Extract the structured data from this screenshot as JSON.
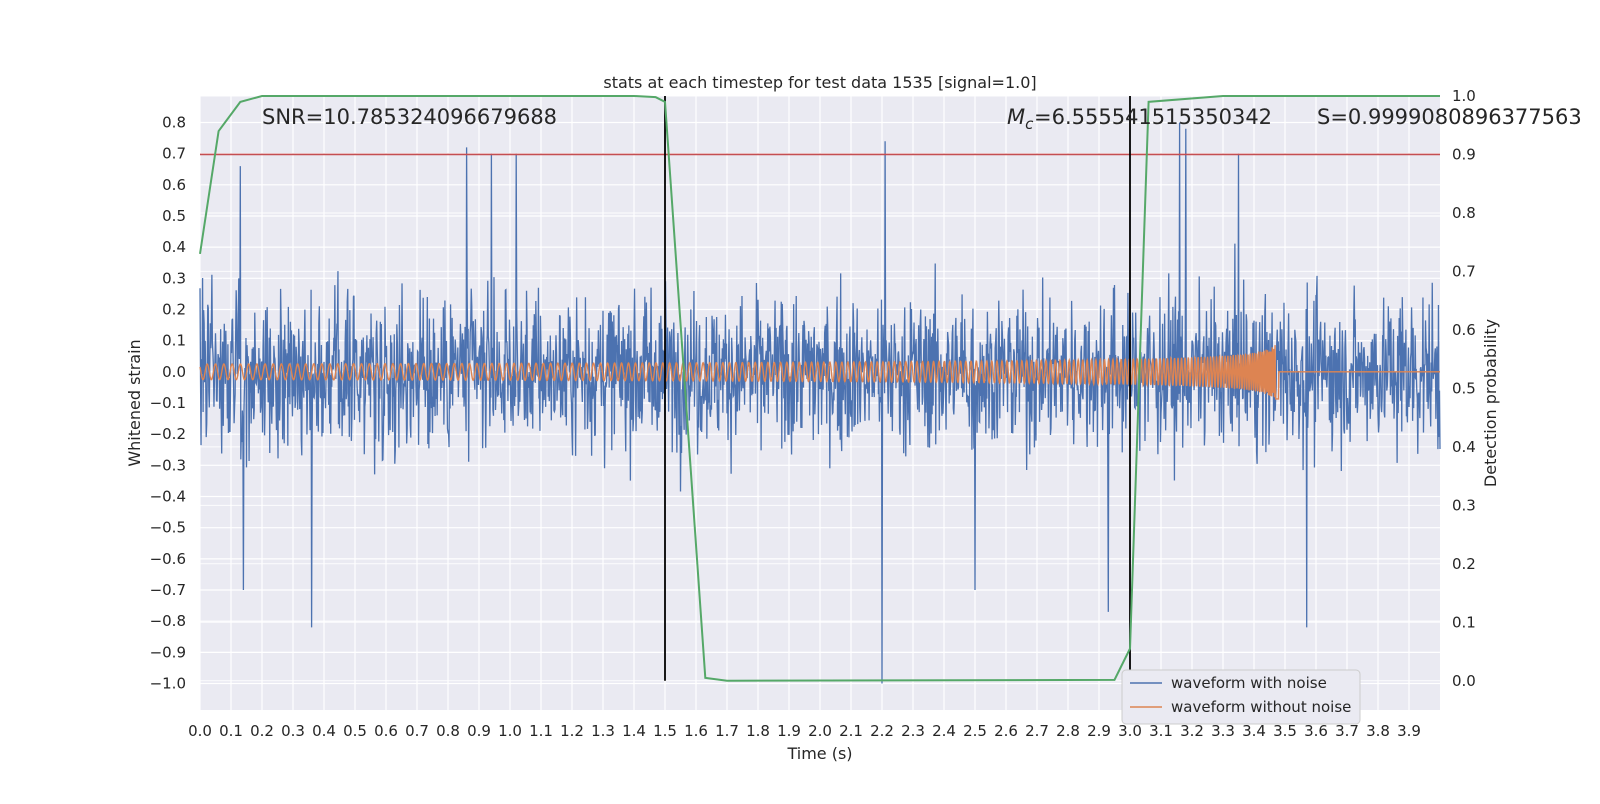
{
  "chart_data": {
    "type": "line",
    "title": "stats at each timestep for test data 1535 [signal=1.0]",
    "xlabel": "Time (s)",
    "ylabel_left": "Whitened strain",
    "ylabel_right": "Detection probability",
    "xlim": [
      0.0,
      4.0
    ],
    "ylim_left": [
      -1.085,
      0.885
    ],
    "ylim_right": [
      -0.05,
      1.0
    ],
    "x_ticks": [
      0.0,
      0.1,
      0.2,
      0.3,
      0.4,
      0.5,
      0.6,
      0.7,
      0.8,
      0.9,
      1.0,
      1.1,
      1.2,
      1.3,
      1.4,
      1.5,
      1.6,
      1.7,
      1.8,
      1.9,
      2.0,
      2.1,
      2.2,
      2.3,
      2.4,
      2.5,
      2.6,
      2.7,
      2.8,
      2.9,
      3.0,
      3.1,
      3.2,
      3.3,
      3.4,
      3.5,
      3.6,
      3.7,
      3.8,
      3.9
    ],
    "x_tick_labels": [
      "0.0",
      "0.1",
      "0.2",
      "0.3",
      "0.4",
      "0.5",
      "0.6",
      "0.7",
      "0.8",
      "0.9",
      "1.0",
      "1.1",
      "1.2",
      "1.3",
      "1.4",
      "1.5",
      "1.6",
      "1.7",
      "1.8",
      "1.9",
      "2.0",
      "2.1",
      "2.2",
      "2.3",
      "2.4",
      "2.5",
      "2.6",
      "2.7",
      "2.8",
      "2.9",
      "3.0",
      "3.1",
      "3.2",
      "3.3",
      "3.4",
      "3.5",
      "3.6",
      "3.7",
      "3.8",
      "3.9"
    ],
    "y_left_ticks": [
      0.8,
      0.7,
      0.6,
      0.5,
      0.4,
      0.3,
      0.2,
      0.1,
      0.0,
      -0.1,
      -0.2,
      -0.3,
      -0.4,
      -0.5,
      -0.6,
      -0.7,
      -0.8,
      -0.9,
      -1.0
    ],
    "y_left_tick_labels": [
      "0.8",
      "0.7",
      "0.6",
      "0.5",
      "0.4",
      "0.3",
      "0.2",
      "0.1",
      "0.0",
      "−0.1",
      "−0.2",
      "−0.3",
      "−0.4",
      "−0.5",
      "−0.6",
      "−0.7",
      "−0.8",
      "−0.9",
      "−1.0"
    ],
    "y_right_ticks": [
      1.0,
      0.9,
      0.8,
      0.7,
      0.6,
      0.5,
      0.4,
      0.3,
      0.2,
      0.1,
      0.0
    ],
    "y_right_tick_labels": [
      "1.0",
      "0.9",
      "0.8",
      "0.7",
      "0.6",
      "0.5",
      "0.4",
      "0.3",
      "0.2",
      "0.1",
      "0.0"
    ],
    "grid": true,
    "legend_location": "lower-right",
    "annotations": {
      "snr": "SNR=10.785324096679688",
      "mc": "=6.555541515350342",
      "s": "S=0.9999080896377563"
    },
    "threshold_probability": 0.9,
    "vertical_markers": [
      1.5,
      3.0
    ],
    "series": [
      {
        "name": "waveform with noise",
        "color": "#4c72b0",
        "axis": "left",
        "description_type": "noisy strain",
        "noise_envelope": [
          0.45,
          -0.45
        ],
        "peak_values": [
          0.66,
          0.7,
          0.7,
          0.72,
          0.8,
          0.81,
          0.78,
          -0.82,
          -0.7,
          -1.0,
          -0.7,
          -0.77,
          -0.82
        ]
      },
      {
        "name": "waveform without noise",
        "color": "#dd8452",
        "axis": "left",
        "chirp_start_amplitude": 0.025,
        "chirp_peak_amplitude": 0.27,
        "chirp_peak_time": 3.47,
        "chirp_end_time": 3.48
      },
      {
        "name": "Detection probability",
        "color": "#55a868",
        "axis": "right",
        "x": [
          0.0,
          0.06,
          0.13,
          0.2,
          1.4,
          1.47,
          1.5,
          1.63,
          1.7,
          2.95,
          3.0,
          3.06,
          3.3,
          4.0
        ],
        "y": [
          0.73,
          0.94,
          0.99,
          1.0,
          1.0,
          0.998,
          0.99,
          0.005,
          0.0,
          0.0015,
          0.055,
          0.99,
          1.0,
          1.0
        ]
      }
    ],
    "threshold_color": "#c44e52",
    "vline_color": "#000000"
  }
}
